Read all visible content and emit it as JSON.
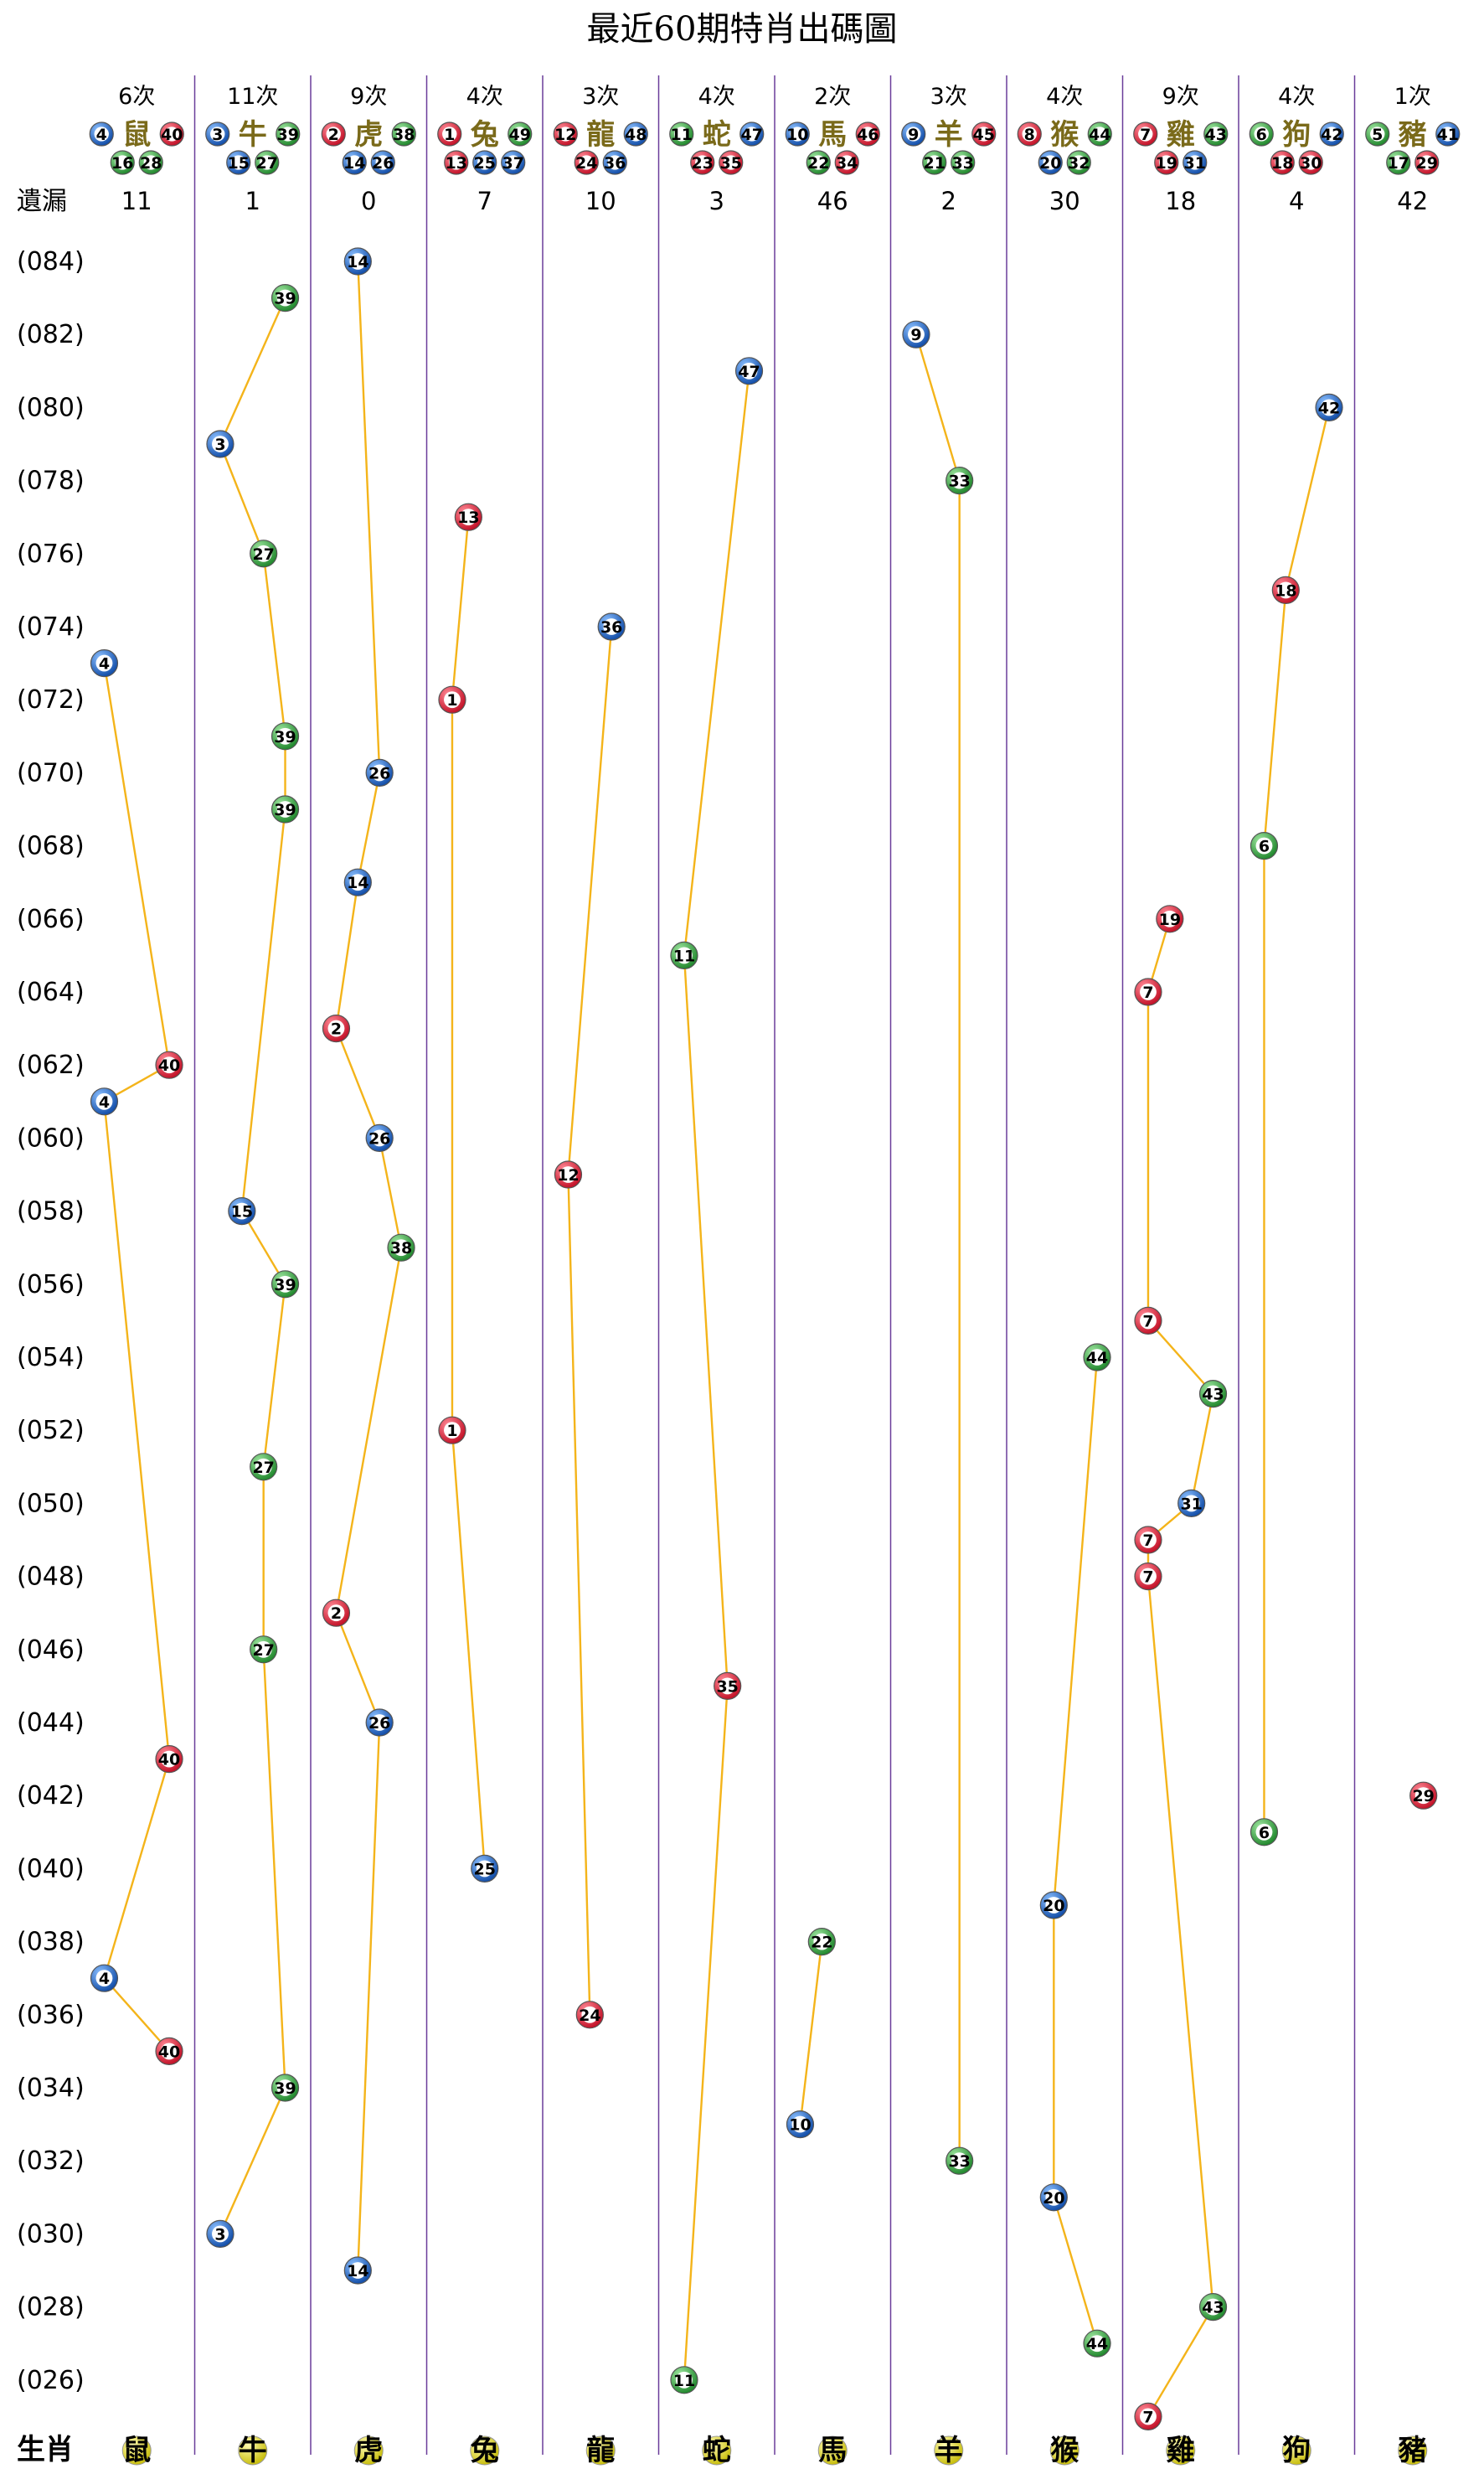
{
  "chart_data": {
    "type": "scatter",
    "title": "最近60期特肖出碼圖",
    "miss_label": "遺漏",
    "footer_label": "生肖",
    "colors": {
      "red": "#d8283a",
      "blue": "#1e64c0",
      "green": "#2e9a3a",
      "line": "#f4b41a",
      "grid": "#6a3d9a",
      "footer_ball": "#e8e23a"
    },
    "zodiacs": [
      {
        "name": "鼠",
        "count": "6次",
        "miss": "11",
        "numbers": [
          4,
          40,
          16,
          28
        ]
      },
      {
        "name": "牛",
        "count": "11次",
        "miss": "1",
        "numbers": [
          3,
          39,
          15,
          27
        ]
      },
      {
        "name": "虎",
        "count": "9次",
        "miss": "0",
        "numbers": [
          2,
          38,
          14,
          26
        ]
      },
      {
        "name": "兔",
        "count": "4次",
        "miss": "7",
        "numbers": [
          1,
          49,
          13,
          25,
          37
        ]
      },
      {
        "name": "龍",
        "count": "3次",
        "miss": "10",
        "numbers": [
          12,
          48,
          24,
          36
        ]
      },
      {
        "name": "蛇",
        "count": "4次",
        "miss": "3",
        "numbers": [
          11,
          47,
          23,
          35
        ]
      },
      {
        "name": "馬",
        "count": "2次",
        "miss": "46",
        "numbers": [
          10,
          46,
          22,
          34
        ]
      },
      {
        "name": "羊",
        "count": "3次",
        "miss": "2",
        "numbers": [
          9,
          45,
          21,
          33
        ]
      },
      {
        "name": "猴",
        "count": "4次",
        "miss": "30",
        "numbers": [
          8,
          44,
          20,
          32
        ]
      },
      {
        "name": "雞",
        "count": "9次",
        "miss": "18",
        "numbers": [
          7,
          43,
          19,
          31
        ]
      },
      {
        "name": "狗",
        "count": "4次",
        "miss": "4",
        "numbers": [
          6,
          42,
          18,
          30
        ]
      },
      {
        "name": "豬",
        "count": "1次",
        "miss": "42",
        "numbers": [
          5,
          41,
          17,
          29
        ]
      }
    ],
    "period_labels": [
      "(084)",
      "(082)",
      "(080)",
      "(078)",
      "(076)",
      "(074)",
      "(072)",
      "(070)",
      "(068)",
      "(066)",
      "(064)",
      "(062)",
      "(060)",
      "(058)",
      "(056)",
      "(054)",
      "(052)",
      "(050)",
      "(048)",
      "(046)",
      "(044)",
      "(042)",
      "(040)",
      "(038)",
      "(036)",
      "(034)",
      "(032)",
      "(030)",
      "(028)",
      "(026)"
    ],
    "draws": [
      {
        "period": 84,
        "number": 14,
        "zodiac": "虎"
      },
      {
        "period": 83,
        "number": 39,
        "zodiac": "牛"
      },
      {
        "period": 82,
        "number": 9,
        "zodiac": "羊"
      },
      {
        "period": 81,
        "number": 47,
        "zodiac": "蛇"
      },
      {
        "period": 80,
        "number": 42,
        "zodiac": "狗"
      },
      {
        "period": 79,
        "number": 3,
        "zodiac": "牛"
      },
      {
        "period": 78,
        "number": 33,
        "zodiac": "羊"
      },
      {
        "period": 77,
        "number": 13,
        "zodiac": "兔"
      },
      {
        "period": 76,
        "number": 27,
        "zodiac": "牛"
      },
      {
        "period": 75,
        "number": 18,
        "zodiac": "狗"
      },
      {
        "period": 74,
        "number": 36,
        "zodiac": "龍"
      },
      {
        "period": 73,
        "number": 4,
        "zodiac": "鼠"
      },
      {
        "period": 72,
        "number": 1,
        "zodiac": "兔"
      },
      {
        "period": 71,
        "number": 39,
        "zodiac": "牛"
      },
      {
        "period": 70,
        "number": 26,
        "zodiac": "虎"
      },
      {
        "period": 69,
        "number": 39,
        "zodiac": "牛"
      },
      {
        "period": 68,
        "number": 6,
        "zodiac": "狗"
      },
      {
        "period": 67,
        "number": 14,
        "zodiac": "虎"
      },
      {
        "period": 66,
        "number": 19,
        "zodiac": "雞"
      },
      {
        "period": 65,
        "number": 11,
        "zodiac": "蛇"
      },
      {
        "period": 64,
        "number": 7,
        "zodiac": "雞"
      },
      {
        "period": 63,
        "number": 2,
        "zodiac": "虎"
      },
      {
        "period": 62,
        "number": 40,
        "zodiac": "鼠"
      },
      {
        "period": 61,
        "number": 4,
        "zodiac": "鼠"
      },
      {
        "period": 60,
        "number": 26,
        "zodiac": "虎"
      },
      {
        "period": 59,
        "number": 12,
        "zodiac": "龍"
      },
      {
        "period": 58,
        "number": 15,
        "zodiac": "牛"
      },
      {
        "period": 57,
        "number": 38,
        "zodiac": "虎"
      },
      {
        "period": 56,
        "number": 39,
        "zodiac": "牛"
      },
      {
        "period": 55,
        "number": 7,
        "zodiac": "雞"
      },
      {
        "period": 54,
        "number": 44,
        "zodiac": "猴"
      },
      {
        "period": 53,
        "number": 43,
        "zodiac": "雞"
      },
      {
        "period": 52,
        "number": 1,
        "zodiac": "兔"
      },
      {
        "period": 51,
        "number": 27,
        "zodiac": "牛"
      },
      {
        "period": 50,
        "number": 31,
        "zodiac": "雞"
      },
      {
        "period": 49,
        "number": 7,
        "zodiac": "雞"
      },
      {
        "period": 48,
        "number": 7,
        "zodiac": "雞"
      },
      {
        "period": 47,
        "number": 2,
        "zodiac": "虎"
      },
      {
        "period": 46,
        "number": 27,
        "zodiac": "牛"
      },
      {
        "period": 45,
        "number": 35,
        "zodiac": "蛇"
      },
      {
        "period": 44,
        "number": 26,
        "zodiac": "虎"
      },
      {
        "period": 43,
        "number": 40,
        "zodiac": "鼠"
      },
      {
        "period": 42,
        "number": 29,
        "zodiac": "豬"
      },
      {
        "period": 41,
        "number": 6,
        "zodiac": "狗"
      },
      {
        "period": 40,
        "number": 25,
        "zodiac": "兔"
      },
      {
        "period": 39,
        "number": 20,
        "zodiac": "猴"
      },
      {
        "period": 38,
        "number": 22,
        "zodiac": "馬"
      },
      {
        "period": 37,
        "number": 4,
        "zodiac": "鼠"
      },
      {
        "period": 36,
        "number": 24,
        "zodiac": "龍"
      },
      {
        "period": 35,
        "number": 40,
        "zodiac": "鼠"
      },
      {
        "period": 34,
        "number": 39,
        "zodiac": "牛"
      },
      {
        "period": 33,
        "number": 10,
        "zodiac": "馬"
      },
      {
        "period": 32,
        "number": 33,
        "zodiac": "羊"
      },
      {
        "period": 31,
        "number": 20,
        "zodiac": "猴"
      },
      {
        "period": 30,
        "number": 3,
        "zodiac": "牛"
      },
      {
        "period": 29,
        "number": 14,
        "zodiac": "虎"
      },
      {
        "period": 28,
        "number": 43,
        "zodiac": "雞"
      },
      {
        "period": 27,
        "number": 44,
        "zodiac": "猴"
      },
      {
        "period": 26,
        "number": 11,
        "zodiac": "蛇"
      },
      {
        "period": 25,
        "number": 7,
        "zodiac": "雞"
      }
    ]
  }
}
